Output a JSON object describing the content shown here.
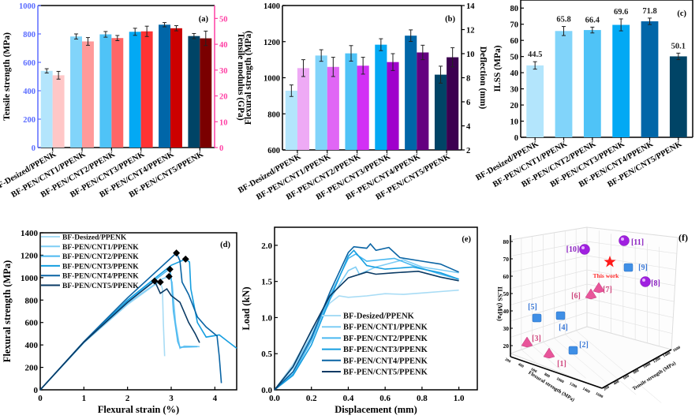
{
  "figure": {
    "panel_labels": [
      "(a)",
      "(b)",
      "(c)",
      "(d)",
      "(e)",
      "(f)"
    ]
  },
  "chart_data": [
    {
      "id": "a",
      "type": "bar",
      "title": "(a)",
      "categories": [
        "BF-Desized/PPENK",
        "BF-PEN/CNT1/PPENK",
        "BF-PEN/CNT2/PPENK",
        "BF-PEN/CNT3/PPENK",
        "BF-PEN/CNT4/PPENK",
        "BF-PEN/CNT5/PPENK"
      ],
      "ylabel": "Tensile strength (MPa)",
      "ylabel2": "Tensile modulus (GPa)",
      "ylim": [
        0,
        1000
      ],
      "ylim2": [
        0,
        55
      ],
      "yticks": [
        0,
        200,
        400,
        600,
        800,
        1000
      ],
      "yticks2": [
        0,
        10,
        20,
        30,
        40,
        50
      ],
      "series": [
        {
          "name": "Tensile strength",
          "axis": "left",
          "values": [
            540,
            782,
            797,
            815,
            865,
            785
          ],
          "errors": [
            15,
            18,
            20,
            25,
            15,
            18
          ],
          "colors": [
            "#b3e5fc",
            "#81d4fa",
            "#4fc3f7",
            "#03a9f4",
            "#0066a8",
            "#004466"
          ]
        },
        {
          "name": "Tensile modulus",
          "axis": "right",
          "values": [
            28,
            41.1,
            42.4,
            45,
            46.2,
            42.3
          ],
          "errors": [
            1.5,
            1.5,
            1,
            2,
            1,
            2.8
          ],
          "colors": [
            "#ffc7c7",
            "#ff9a9a",
            "#ff6666",
            "#ff3333",
            "#cc0000",
            "#7a0000"
          ]
        }
      ],
      "axis_colors": {
        "left": "#5b6cff",
        "right": "#ff3fa4"
      }
    },
    {
      "id": "b",
      "type": "bar",
      "title": "(b)",
      "categories": [
        "BF-Desized/PPENK",
        "BF-PEN/CNT1/PPENK",
        "BF-PEN/CNT2/PPENK",
        "BF-PEN/CNT3/PPENK",
        "BF-PEN/CNT4/PPENK",
        "BF-PEN/CNT5/PPENK"
      ],
      "ylabel": "Flexural strength (MPa)",
      "ylabel2": "Deflection (mm)",
      "ylim": [
        600,
        1400
      ],
      "ylim2": [
        2,
        14
      ],
      "yticks": [
        600,
        800,
        1000,
        1200,
        1400
      ],
      "yticks2": [
        2,
        4,
        6,
        8,
        10,
        12,
        14
      ],
      "series": [
        {
          "name": "Flexural strength",
          "axis": "left",
          "values": [
            928,
            1123,
            1135,
            1183,
            1233,
            1017
          ],
          "errors": [
            32,
            32,
            43,
            33,
            32,
            47
          ],
          "colors": [
            "#b3e5fc",
            "#81d4fa",
            "#4fc3f7",
            "#03a9f4",
            "#0066a8",
            "#004466"
          ]
        },
        {
          "name": "Deflection",
          "axis": "right",
          "values": [
            8.8,
            8.9,
            9.0,
            9.3,
            10.1,
            9.7
          ],
          "errors": [
            0.7,
            0.8,
            0.7,
            0.7,
            0.6,
            0.8
          ],
          "colors": [
            "#eeaaf5",
            "#e066f5",
            "#d230f5",
            "#a000cc",
            "#640080",
            "#3c0050"
          ]
        }
      ]
    },
    {
      "id": "c",
      "type": "bar",
      "title": "(c)",
      "categories": [
        "BF-Desized/PPENK",
        "BF-PEN/CNT1/PPENK",
        "BF-PEN/CNT2/PPENK",
        "BF-PEN/CNT3/PPENK",
        "BF-PEN/CNT4/PPENK",
        "BF-PEN/CNT5/PPENK"
      ],
      "ylabel": "ILSS (MPa)",
      "ylim": [
        0,
        85
      ],
      "yticks": [
        0,
        10,
        20,
        30,
        40,
        50,
        60,
        70,
        80
      ],
      "values": [
        44.5,
        65.8,
        66.4,
        69.6,
        71.8,
        50.1
      ],
      "value_labels": [
        "44.5",
        "65.8",
        "66.4",
        "69.6",
        "71.8",
        "50.1"
      ],
      "errors": [
        2.3,
        2.8,
        1.8,
        3.7,
        2.0,
        2.0
      ],
      "colors": [
        "#b3e5fc",
        "#81d4fa",
        "#4fc3f7",
        "#03a9f4",
        "#0066a8",
        "#004466"
      ]
    },
    {
      "id": "d",
      "type": "line",
      "title": "(d)",
      "xlabel": "Flexural strain (%)",
      "ylabel": "Flexural strength (MPa)",
      "xlim": [
        0,
        4.5
      ],
      "ylim": [
        0,
        1400
      ],
      "xticks": [
        0,
        1,
        2,
        3,
        4
      ],
      "yticks": [
        0,
        200,
        400,
        600,
        800,
        1000,
        1200,
        1400
      ],
      "legend_position": "top-left",
      "series": [
        {
          "name": "BF-Desized/PPENK",
          "color": "#a8dcf5",
          "peak": [
            2.75,
            960
          ],
          "points": [
            [
              0,
              0
            ],
            [
              1,
              420
            ],
            [
              2,
              760
            ],
            [
              2.6,
              930
            ],
            [
              2.75,
              960
            ],
            [
              2.8,
              900
            ],
            [
              2.82,
              600
            ],
            [
              2.85,
              300
            ]
          ]
        },
        {
          "name": "BF-PEN/CNT1/PPENK",
          "color": "#7ecdf5",
          "peak": [
            2.95,
            1010
          ],
          "points": [
            [
              0,
              0
            ],
            [
              1,
              420
            ],
            [
              2,
              770
            ],
            [
              2.8,
              990
            ],
            [
              2.95,
              1010
            ],
            [
              3.02,
              960
            ],
            [
              3.1,
              600
            ],
            [
              3.2,
              370
            ],
            [
              3.3,
              390
            ],
            [
              3.65,
              385
            ]
          ]
        },
        {
          "name": "BF-PEN/CNT2/PPENK",
          "color": "#4ab8f0",
          "peak": [
            2.97,
            1075
          ],
          "points": [
            [
              0,
              0
            ],
            [
              1,
              425
            ],
            [
              2,
              790
            ],
            [
              2.9,
              1060
            ],
            [
              2.97,
              1075
            ],
            [
              3.0,
              1000
            ],
            [
              3.05,
              700
            ],
            [
              3.15,
              430
            ],
            [
              3.2,
              380
            ],
            [
              3.6,
              385
            ]
          ]
        },
        {
          "name": "BF-PEN/CNT3/PPENK",
          "color": "#159ee0",
          "peak": [
            3.33,
            1165
          ],
          "points": [
            [
              0,
              0
            ],
            [
              1,
              425
            ],
            [
              2,
              800
            ],
            [
              3,
              1110
            ],
            [
              3.33,
              1165
            ],
            [
              3.42,
              1140
            ],
            [
              3.45,
              900
            ],
            [
              3.6,
              600
            ],
            [
              3.8,
              470
            ],
            [
              4.1,
              490
            ],
            [
              4.3,
              430
            ],
            [
              4.5,
              370
            ]
          ]
        },
        {
          "name": "BF-PEN/CNT4/PPENK",
          "color": "#0a64a4",
          "peak": [
            3.12,
            1220
          ],
          "points": [
            [
              0,
              0
            ],
            [
              1,
              430
            ],
            [
              2,
              820
            ],
            [
              3.12,
              1220
            ],
            [
              3.2,
              1150
            ],
            [
              3.25,
              960
            ],
            [
              3.4,
              850
            ],
            [
              3.6,
              650
            ],
            [
              3.8,
              560
            ],
            [
              4.05,
              480
            ],
            [
              4.1,
              300
            ],
            [
              4.15,
              60
            ]
          ]
        },
        {
          "name": "BF-PEN/CNT5/PPENK",
          "color": "#0a3a64",
          "peak": [
            2.62,
            970
          ],
          "points": [
            [
              0,
              0
            ],
            [
              1,
              425
            ],
            [
              2,
              780
            ],
            [
              2.62,
              970
            ],
            [
              2.75,
              860
            ],
            [
              2.9,
              900
            ],
            [
              3.0,
              840
            ],
            [
              3.2,
              780
            ],
            [
              3.4,
              600
            ],
            [
              3.55,
              500
            ],
            [
              3.65,
              420
            ]
          ]
        }
      ]
    },
    {
      "id": "e",
      "type": "line",
      "title": "(e)",
      "xlabel": "Displacement (mm)",
      "ylabel": "Load (kN)",
      "xlim": [
        0,
        1.1
      ],
      "ylim": [
        0,
        2.25
      ],
      "xticks": [
        0.0,
        0.2,
        0.4,
        0.6,
        0.8,
        1.0
      ],
      "yticks": [
        0.0,
        0.5,
        1.0,
        1.5,
        2.0
      ],
      "legend_position": "bottom-right",
      "series": [
        {
          "name": "BF-Desized/PPENK",
          "color": "#a8dcf5",
          "points": [
            [
              0,
              0
            ],
            [
              0.1,
              0.35
            ],
            [
              0.2,
              0.8
            ],
            [
              0.3,
              1.2
            ],
            [
              0.35,
              1.3
            ],
            [
              0.4,
              1.28
            ],
            [
              0.5,
              1.3
            ],
            [
              0.6,
              1.33
            ],
            [
              0.7,
              1.32
            ],
            [
              0.8,
              1.34
            ],
            [
              0.9,
              1.36
            ],
            [
              1.0,
              1.38
            ]
          ]
        },
        {
          "name": "BF-PEN/CNT1/PPENK",
          "color": "#7ecdf5",
          "points": [
            [
              0,
              0
            ],
            [
              0.1,
              0.3
            ],
            [
              0.2,
              0.75
            ],
            [
              0.3,
              1.25
            ],
            [
              0.4,
              1.65
            ],
            [
              0.44,
              1.7
            ],
            [
              0.46,
              1.6
            ],
            [
              0.55,
              1.7
            ],
            [
              0.7,
              1.8
            ],
            [
              0.8,
              1.7
            ],
            [
              0.9,
              1.66
            ],
            [
              1.0,
              1.62
            ]
          ]
        },
        {
          "name": "BF-PEN/CNT2/PPENK",
          "color": "#4ab8f0",
          "points": [
            [
              0,
              0
            ],
            [
              0.1,
              0.22
            ],
            [
              0.2,
              0.68
            ],
            [
              0.3,
              1.3
            ],
            [
              0.4,
              1.82
            ],
            [
              0.44,
              1.88
            ],
            [
              0.5,
              1.78
            ],
            [
              0.65,
              1.82
            ],
            [
              0.75,
              1.72
            ],
            [
              0.9,
              1.6
            ],
            [
              1.0,
              1.53
            ]
          ]
        },
        {
          "name": "BF-PEN/CNT3/PPENK",
          "color": "#159ee0",
          "points": [
            [
              0,
              0
            ],
            [
              0.1,
              0.2
            ],
            [
              0.2,
              0.62
            ],
            [
              0.3,
              1.25
            ],
            [
              0.4,
              1.85
            ],
            [
              0.43,
              1.93
            ],
            [
              0.5,
              1.72
            ],
            [
              0.6,
              1.67
            ],
            [
              0.75,
              1.7
            ],
            [
              0.9,
              1.62
            ],
            [
              1.0,
              1.53
            ]
          ]
        },
        {
          "name": "BF-PEN/CNT4/PPENK",
          "color": "#0a64a4",
          "points": [
            [
              0,
              0
            ],
            [
              0.1,
              0.25
            ],
            [
              0.2,
              0.72
            ],
            [
              0.3,
              1.35
            ],
            [
              0.4,
              1.9
            ],
            [
              0.43,
              1.98
            ],
            [
              0.5,
              1.96
            ],
            [
              0.52,
              2.02
            ],
            [
              0.55,
              1.93
            ],
            [
              0.62,
              1.97
            ],
            [
              0.68,
              1.83
            ],
            [
              0.8,
              1.78
            ],
            [
              0.9,
              1.74
            ],
            [
              1.0,
              1.63
            ]
          ]
        },
        {
          "name": "BF-PEN/CNT5/PPENK",
          "color": "#0a3a64",
          "points": [
            [
              0,
              0
            ],
            [
              0.1,
              0.32
            ],
            [
              0.2,
              0.82
            ],
            [
              0.3,
              1.3
            ],
            [
              0.4,
              1.55
            ],
            [
              0.5,
              1.63
            ],
            [
              0.55,
              1.6
            ],
            [
              0.65,
              1.62
            ],
            [
              0.78,
              1.64
            ],
            [
              0.9,
              1.56
            ],
            [
              1.0,
              1.51
            ]
          ]
        }
      ]
    },
    {
      "id": "f",
      "type": "scatter",
      "title": "(f)",
      "projection": "3d",
      "xlabel": "Flexural strength (MPa)",
      "ylabel": "Tensile strength (MPa)",
      "zlabel": "ILSS (MPa)",
      "zticks": [
        20,
        30,
        40,
        50,
        60,
        70,
        80
      ],
      "xticks": [
        "200",
        "400",
        "600",
        "800",
        "1000",
        "1200",
        "1400",
        "1600"
      ],
      "yticks": [
        "200",
        "400",
        "600",
        "800",
        "1000",
        "1200",
        "1400",
        "1600"
      ],
      "points": [
        {
          "label": "[1]",
          "marker": "triangle",
          "color": "#e8559a"
        },
        {
          "label": "[2]",
          "marker": "cube",
          "color": "#3f8fe6"
        },
        {
          "label": "[3]",
          "marker": "triangle",
          "color": "#e8559a"
        },
        {
          "label": "[4]",
          "marker": "cube",
          "color": "#3f8fe6"
        },
        {
          "label": "[5]",
          "marker": "cube",
          "color": "#3f8fe6"
        },
        {
          "label": "[6]",
          "marker": "triangle",
          "color": "#e8559a"
        },
        {
          "label": "[7]",
          "marker": "triangle",
          "color": "#e8559a"
        },
        {
          "label": "[8]",
          "marker": "sphere",
          "color": "#a020e0"
        },
        {
          "label": "[9]",
          "marker": "cube",
          "color": "#3f8fe6"
        },
        {
          "label": "[10]",
          "marker": "sphere",
          "color": "#a020e0"
        },
        {
          "label": "[11]",
          "marker": "sphere",
          "color": "#a020e0"
        },
        {
          "label": "This work",
          "marker": "star",
          "color": "#ff1a1a"
        }
      ],
      "label_colors": {
        "triangle": "#d0487f",
        "cube": "#3a78d6",
        "sphere": "#8a20c0",
        "star": "#ff2a2a"
      }
    }
  ]
}
